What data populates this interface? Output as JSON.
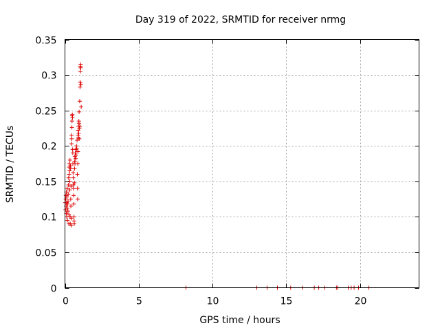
{
  "chart_data": {
    "type": "scatter",
    "title": "Day 319 of 2022, SRMTID for receiver nrmg",
    "xlabel": "GPS time / hours",
    "ylabel": "SRMTID / TECUs",
    "xlim": [
      0,
      24
    ],
    "ylim": [
      0,
      0.35
    ],
    "xticks": [
      0,
      5,
      10,
      15,
      20
    ],
    "yticks": [
      0,
      0.05,
      0.1,
      0.15,
      0.2,
      0.25,
      0.3,
      0.35
    ],
    "xtick_labels": [
      "0",
      "5",
      "10",
      "15",
      "20"
    ],
    "ytick_labels": [
      "0",
      "0.05",
      "0.1",
      "0.15",
      "0.2",
      "0.25",
      "0.3",
      "0.35"
    ],
    "grid": true,
    "marker": "+",
    "color": "#dd0000",
    "series": [
      {
        "name": "SRMTID",
        "points": [
          [
            0.02,
            0.12
          ],
          [
            0.03,
            0.11
          ],
          [
            0.05,
            0.125
          ],
          [
            0.06,
            0.13
          ],
          [
            0.08,
            0.115
          ],
          [
            0.09,
            0.105
          ],
          [
            0.1,
            0.135
          ],
          [
            0.11,
            0.12
          ],
          [
            0.12,
            0.1
          ],
          [
            0.13,
            0.128
          ],
          [
            0.15,
            0.14
          ],
          [
            0.16,
            0.112
          ],
          [
            0.17,
            0.095
          ],
          [
            0.18,
            0.118
          ],
          [
            0.2,
            0.108
          ],
          [
            0.21,
            0.122
          ],
          [
            0.22,
            0.132
          ],
          [
            0.24,
            0.145
          ],
          [
            0.25,
            0.155
          ],
          [
            0.26,
            0.09
          ],
          [
            0.27,
            0.103
          ],
          [
            0.28,
            0.16
          ],
          [
            0.29,
            0.17
          ],
          [
            0.3,
            0.175
          ],
          [
            0.31,
            0.165
          ],
          [
            0.32,
            0.138
          ],
          [
            0.33,
            0.15
          ],
          [
            0.34,
            0.18
          ],
          [
            0.35,
            0.1
          ],
          [
            0.36,
            0.09
          ],
          [
            0.37,
            0.172
          ],
          [
            0.38,
            0.168
          ],
          [
            0.39,
            0.125
          ],
          [
            0.4,
            0.115
          ],
          [
            0.41,
            0.143
          ],
          [
            0.42,
            0.098
          ],
          [
            0.43,
            0.088
          ],
          [
            0.44,
            0.203
          ],
          [
            0.45,
            0.215
          ],
          [
            0.46,
            0.21
          ],
          [
            0.47,
            0.226
          ],
          [
            0.48,
            0.235
          ],
          [
            0.49,
            0.243
          ],
          [
            0.5,
            0.244
          ],
          [
            0.51,
            0.24
          ],
          [
            0.52,
            0.195
          ],
          [
            0.53,
            0.19
          ],
          [
            0.54,
            0.175
          ],
          [
            0.55,
            0.162
          ],
          [
            0.56,
            0.155
          ],
          [
            0.57,
            0.145
          ],
          [
            0.58,
            0.14
          ],
          [
            0.59,
            0.13
          ],
          [
            0.6,
            0.118
          ],
          [
            0.61,
            0.1
          ],
          [
            0.62,
            0.094
          ],
          [
            0.63,
            0.09
          ],
          [
            0.64,
            0.148
          ],
          [
            0.65,
            0.168
          ],
          [
            0.66,
            0.178
          ],
          [
            0.67,
            0.185
          ],
          [
            0.68,
            0.175
          ],
          [
            0.7,
            0.19
          ],
          [
            0.72,
            0.182
          ],
          [
            0.74,
            0.195
          ],
          [
            0.76,
            0.187
          ],
          [
            0.78,
            0.2
          ],
          [
            0.8,
            0.196
          ],
          [
            0.82,
            0.208
          ],
          [
            0.84,
            0.16
          ],
          [
            0.85,
            0.14
          ],
          [
            0.86,
            0.125
          ],
          [
            0.87,
            0.175
          ],
          [
            0.88,
            0.192
          ],
          [
            0.89,
            0.215
          ],
          [
            0.9,
            0.222
          ],
          [
            0.91,
            0.212
          ],
          [
            0.92,
            0.228
          ],
          [
            0.93,
            0.218
          ],
          [
            0.94,
            0.235
          ],
          [
            0.95,
            0.232
          ],
          [
            0.96,
            0.248
          ],
          [
            0.97,
            0.21
          ],
          [
            0.98,
            0.225
          ],
          [
            1.0,
            0.263
          ],
          [
            1.01,
            0.228
          ],
          [
            1.02,
            0.283
          ],
          [
            1.03,
            0.29
          ],
          [
            1.04,
            0.305
          ],
          [
            1.05,
            0.312
          ],
          [
            1.06,
            0.315
          ],
          [
            1.07,
            0.31
          ],
          [
            1.08,
            0.287
          ],
          [
            1.1,
            0.255
          ],
          [
            8.2,
            0.0
          ],
          [
            13.0,
            0.0
          ],
          [
            13.7,
            0.0
          ],
          [
            14.4,
            0.0
          ],
          [
            15.3,
            0.0
          ],
          [
            16.1,
            0.0
          ],
          [
            16.9,
            0.0
          ],
          [
            17.2,
            0.0
          ],
          [
            17.6,
            0.0
          ],
          [
            18.4,
            0.0
          ],
          [
            18.5,
            0.0
          ],
          [
            19.2,
            0.0
          ],
          [
            19.4,
            0.0
          ],
          [
            19.6,
            0.0
          ],
          [
            19.9,
            0.0
          ],
          [
            20.6,
            0.0
          ]
        ]
      }
    ]
  }
}
